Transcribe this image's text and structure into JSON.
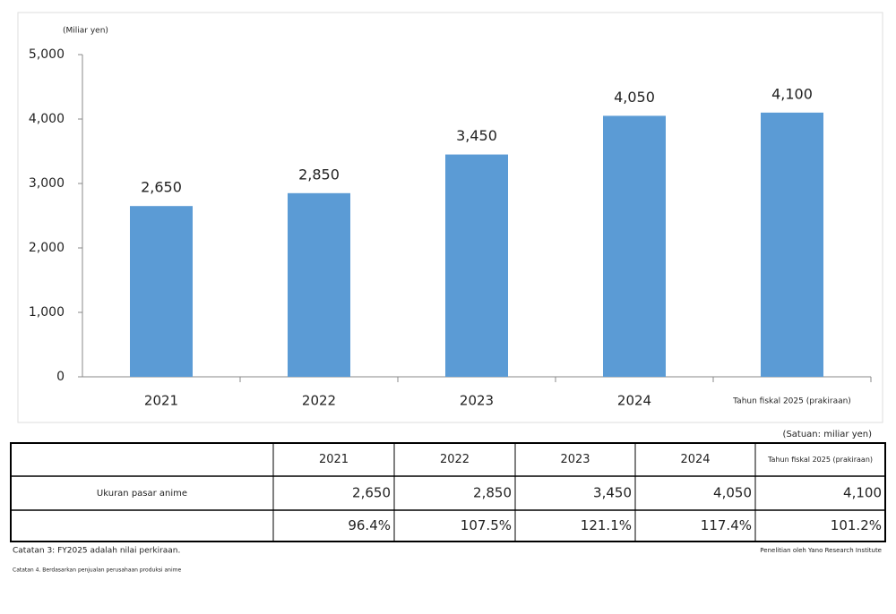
{
  "chart_data": {
    "type": "bar",
    "unit_label": "(Miliar yen)",
    "categories": [
      "2021",
      "2022",
      "2023",
      "2024",
      "Tahun fiskal 2025 (prakiraan)"
    ],
    "values": [
      2650,
      2850,
      3450,
      4050,
      4100
    ],
    "value_labels": [
      "2,650",
      "2,850",
      "3,450",
      "4,050",
      "4,100"
    ],
    "color": "#5b9bd5",
    "ylim": [
      0,
      5000
    ],
    "yticks": [
      0,
      {
        "value": 1000,
        "label": "1,000"
      },
      {
        "value": 2000,
        "label": "2,000"
      },
      {
        "value": 3000,
        "label": "3,000"
      },
      {
        "value": 4000,
        "label": "4,000"
      },
      {
        "value": 5000,
        "label": "5,000"
      }
    ],
    "grid": false
  },
  "table": {
    "unit": "(Satuan: miliar yen)",
    "header": [
      "2021",
      "2022",
      "2023",
      "2024",
      "Tahun fiskal 2025 (prakiraan)"
    ],
    "rows": [
      {
        "label": "Ukuran pasar anime",
        "cells": [
          "2,650",
          "2,850",
          "3,450",
          "4,050",
          "4,100"
        ]
      },
      {
        "cells": [
          "96.4%",
          "107.5%",
          "121.1%",
          "117.4%",
          "101.2%"
        ]
      }
    ]
  },
  "notes": [
    "Catatan 3: FY2025 adalah nilai perkiraan.",
    "Catatan 4. Berdasarkan penjualan perusahaan produksi anime"
  ],
  "source": "Penelitian oleh Yano Research Institute"
}
